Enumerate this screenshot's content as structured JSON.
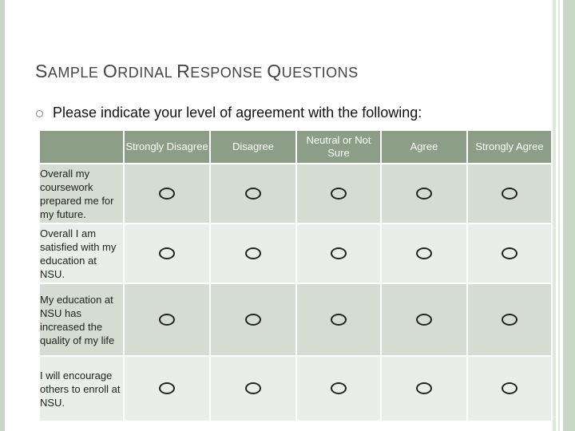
{
  "slide": {
    "title_parts": [
      {
        "big": "S",
        "small": "AMPLE "
      },
      {
        "big": "O",
        "small": "RDINAL "
      },
      {
        "big": "R",
        "small": "ESPONSE "
      },
      {
        "big": "Q",
        "small": "UESTIONS"
      }
    ],
    "prompt": "Please indicate your level of agreement with the following:"
  },
  "table": {
    "corner": "",
    "columns": [
      "Strongly Disagree",
      "Disagree",
      "Neutral or Not Sure",
      "Agree",
      "Strongly Agree"
    ],
    "rows": [
      {
        "question": "Overall my coursework prepared me for my future."
      },
      {
        "question": "Overall I am satisfied with my education at NSU."
      },
      {
        "question": "My education at NSU has increased the quality of my life"
      },
      {
        "question": "I will encourage others to enroll at NSU."
      }
    ]
  },
  "colors": {
    "header": "#8c9e87",
    "row_dark": "#d5ddd2",
    "row_light": "#eaeeea",
    "frame": "#c9d7c6"
  }
}
